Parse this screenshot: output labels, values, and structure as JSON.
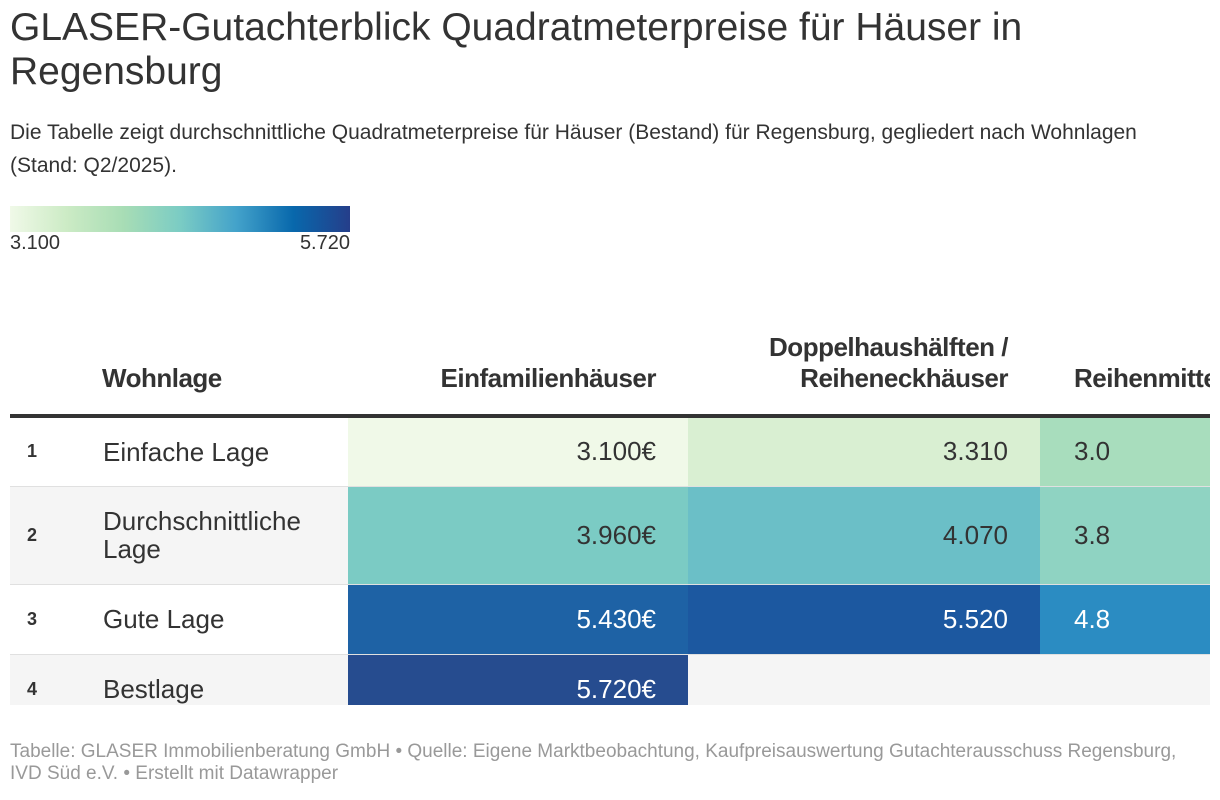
{
  "title": "GLASER-Gutachterblick Quadratmeterpreise für Häuser in Regensburg",
  "subtitle": "Die Tabelle zeigt durchschnittliche Quadratmeterpreise für Häuser (Bestand) für Regensburg, gegliedert nach Wohnlagen (Stand: Q2/2025).",
  "legend": {
    "min_label": "3.100",
    "max_label": "5.720",
    "colors": [
      "#f0f9e8",
      "#ccebc5",
      "#a8ddb5",
      "#7bccc4",
      "#43a2ca",
      "#0868ac",
      "#253e8a"
    ]
  },
  "footer": "Tabelle: GLASER Immobilienberatung GmbH • Quelle: Eigene Marktbeobachtung, Kaufpreisauswertung Gutachterausschuss Regensburg, IVD Süd e.V. • Erstellt mit Datawrapper",
  "chart_data": {
    "type": "table",
    "title": "GLASER-Gutachterblick Quadratmeterpreise für Häuser in Regensburg",
    "color_scale": {
      "min": 3100,
      "max": 5720
    },
    "columns": [
      "",
      "Wohnlage",
      "Einfamilienhäuser",
      "Doppelhaushälften / Reiheneckhäuser",
      "Reihenmittelhäuser"
    ],
    "rows": [
      {
        "rank": "1",
        "wohnlage": "Einfache Lage",
        "efh": "3.100€",
        "efh_value": 3100,
        "efh_color": "#f0f9e8",
        "efh_text": "light",
        "dhh": "3.310",
        "dhh_value": 3310,
        "dhh_color": "#d9efd2",
        "dhh_text": "light",
        "rmh": "3.0",
        "rmh_color": "#a8ddbd",
        "rmh_text": "light"
      },
      {
        "rank": "2",
        "wohnlage": "Durchschnittliche Lage",
        "efh": "3.960€",
        "efh_value": 3960,
        "efh_color": "#7bcbc4",
        "efh_text": "light",
        "dhh": "4.070",
        "dhh_value": 4070,
        "dhh_color": "#6bbfc7",
        "dhh_text": "light",
        "rmh": "3.8",
        "rmh_color": "#8fd3c2",
        "rmh_text": "light"
      },
      {
        "rank": "3",
        "wohnlage": "Gute Lage",
        "efh": "5.430€",
        "efh_value": 5430,
        "efh_color": "#1e62a5",
        "efh_text": "dark",
        "dhh": "5.520",
        "dhh_value": 5520,
        "dhh_color": "#1c58a0",
        "dhh_text": "dark",
        "rmh": "4.8",
        "rmh_color": "#2b8cc2",
        "rmh_text": "dark"
      },
      {
        "rank": "4",
        "wohnlage": "Bestlage",
        "efh": "5.720€",
        "efh_value": 5720,
        "efh_color": "#264c8f",
        "efh_text": "dark",
        "dhh": "",
        "dhh_value": null,
        "dhh_color": "",
        "dhh_text": "light",
        "rmh": "",
        "rmh_color": "",
        "rmh_text": "light"
      }
    ]
  }
}
